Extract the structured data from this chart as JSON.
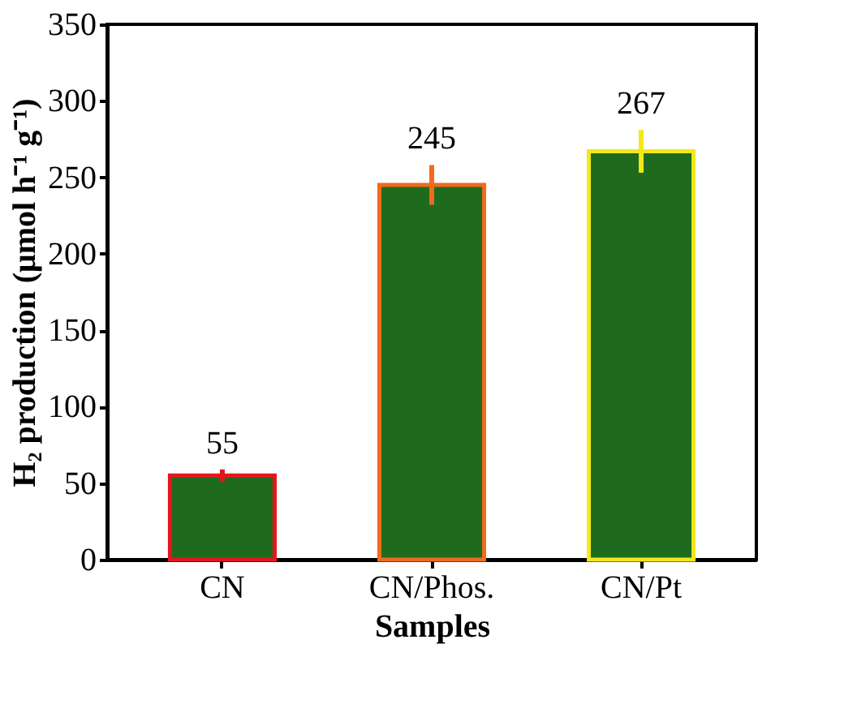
{
  "chart_data": {
    "type": "bar",
    "categories": [
      "CN",
      "CN/Phos.",
      "CN/Pt"
    ],
    "values": [
      55,
      245,
      267
    ],
    "errors": [
      4,
      13,
      14
    ],
    "color": "#1e6b1e",
    "colors": [
      "#e8141c",
      "#f26a1b",
      "#f2e81b"
    ],
    "xlabel": "Samples",
    "ylabel": "H₂ production (μmol h⁻¹ g⁻¹)",
    "ylim": [
      0,
      350
    ],
    "yticks": [
      0,
      50,
      100,
      150,
      200,
      250,
      300,
      350
    ],
    "data_labels": true,
    "grid": false
  }
}
